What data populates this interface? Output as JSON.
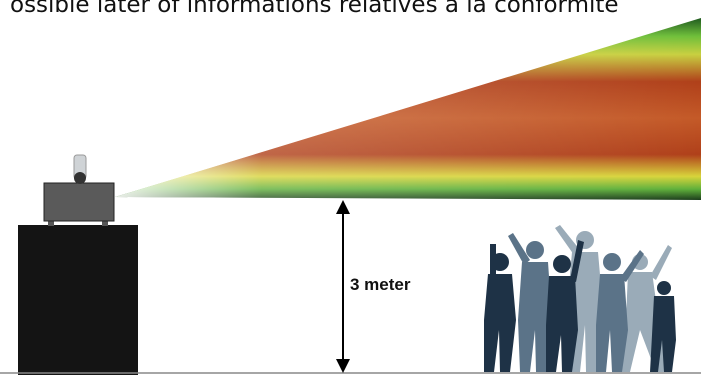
{
  "header": {
    "text": "ossible later of informations relatives à la conformité"
  },
  "diagram": {
    "height_label": "3 meter"
  }
}
